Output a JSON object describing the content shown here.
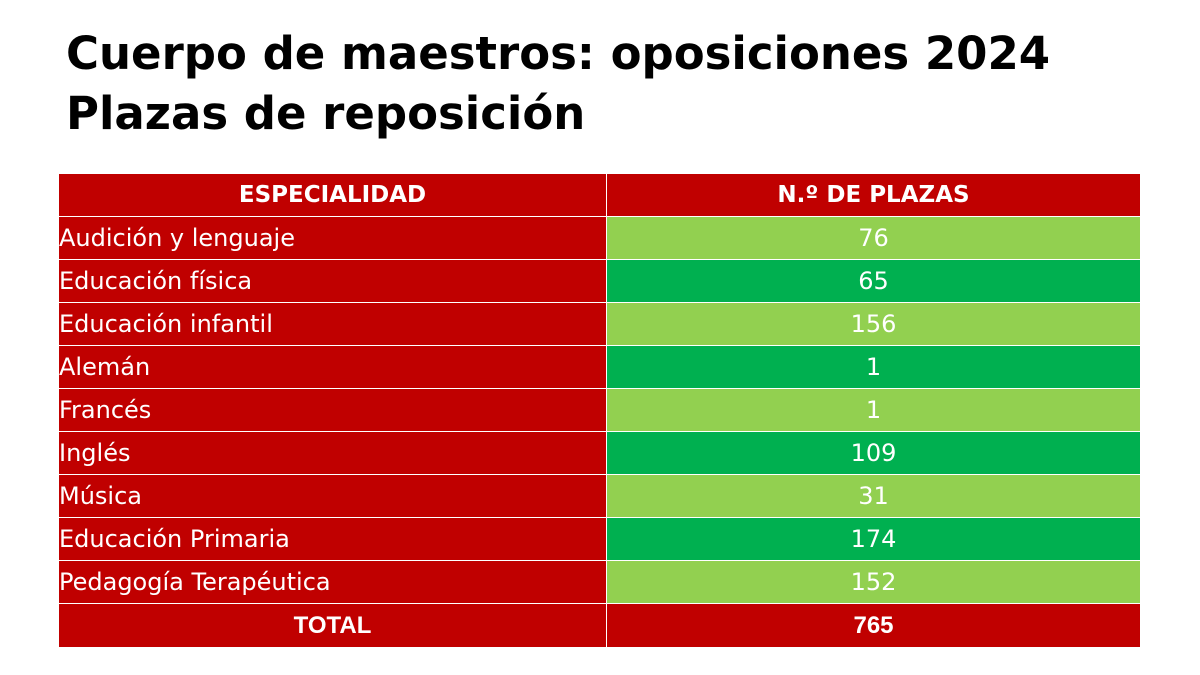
{
  "header": {
    "title_line1": "Cuerpo de maestros: oposiciones 2024",
    "title_line2": "Plazas de reposición"
  },
  "colors": {
    "header_red": "#c00000",
    "light_green": "#92d050",
    "dark_green": "#00b050",
    "text_white": "#ffffff"
  },
  "chart_data": {
    "type": "table",
    "title": "Cuerpo de maestros: oposiciones 2024",
    "subtitle": "Plazas de reposición",
    "columns": [
      "ESPECIALIDAD",
      "N.º DE PLAZAS"
    ],
    "rows": [
      {
        "especialidad": "Audición y lenguaje",
        "plazas": "76"
      },
      {
        "especialidad": "Educación física",
        "plazas": "65"
      },
      {
        "especialidad": "Educación infantil",
        "plazas": "156"
      },
      {
        "especialidad": "Alemán",
        "plazas": "1"
      },
      {
        "especialidad": "Francés",
        "plazas": "1"
      },
      {
        "especialidad": "Inglés",
        "plazas": "109"
      },
      {
        "especialidad": "Música",
        "plazas": "31"
      },
      {
        "especialidad": "Educación Primaria",
        "plazas": "174"
      },
      {
        "especialidad": "Pedagogía Terapéutica",
        "plazas": "152"
      }
    ],
    "total": {
      "label": "TOTAL",
      "plazas": "765"
    }
  }
}
